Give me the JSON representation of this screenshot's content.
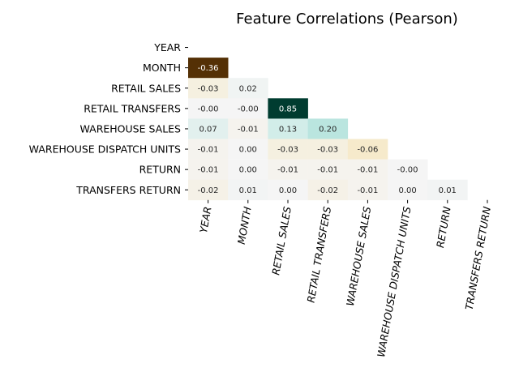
{
  "chart_data": {
    "type": "heatmap",
    "title": "Feature Correlations (Pearson)",
    "rows": [
      "YEAR",
      "MONTH",
      "RETAIL SALES",
      "RETAIL TRANSFERS",
      "WAREHOUSE SALES",
      "WAREHOUSE DISPATCH UNITS",
      "RETURN",
      "TRANSFERS RETURN"
    ],
    "columns": [
      "YEAR",
      "MONTH",
      "RETAIL SALES",
      "RETAIL TRANSFERS",
      "WAREHOUSE SALES",
      "WAREHOUSE DISPATCH UNITS",
      "RETURN",
      "TRANSFERS RETURN"
    ],
    "mask": "upper-triangle-incl-diagonal",
    "colormap": "BrBG",
    "vmin": -0.36,
    "vmax": 0.85,
    "values": [
      [
        null,
        null,
        null,
        null,
        null,
        null,
        null,
        null
      ],
      [
        -0.36,
        null,
        null,
        null,
        null,
        null,
        null,
        null
      ],
      [
        -0.03,
        0.02,
        null,
        null,
        null,
        null,
        null,
        null
      ],
      [
        -0.0,
        -0.0,
        0.85,
        null,
        null,
        null,
        null,
        null
      ],
      [
        0.07,
        -0.01,
        0.13,
        0.2,
        null,
        null,
        null,
        null
      ],
      [
        -0.01,
        0.0,
        -0.03,
        -0.03,
        -0.06,
        null,
        null,
        null
      ],
      [
        -0.01,
        0.0,
        -0.01,
        -0.01,
        -0.01,
        -0.0,
        null,
        null
      ],
      [
        -0.02,
        0.01,
        0.0,
        -0.02,
        -0.01,
        0.0,
        0.01,
        null
      ]
    ],
    "labels": [
      [
        null,
        null,
        null,
        null,
        null,
        null,
        null,
        null
      ],
      [
        "-0.36",
        null,
        null,
        null,
        null,
        null,
        null,
        null
      ],
      [
        "-0.03",
        "0.02",
        null,
        null,
        null,
        null,
        null,
        null
      ],
      [
        "-0.00",
        "-0.00",
        "0.85",
        null,
        null,
        null,
        null,
        null
      ],
      [
        "0.07",
        "-0.01",
        "0.13",
        "0.20",
        null,
        null,
        null,
        null
      ],
      [
        "-0.01",
        "0.00",
        "-0.03",
        "-0.03",
        "-0.06",
        null,
        null,
        null
      ],
      [
        "-0.01",
        "0.00",
        "-0.01",
        "-0.01",
        "-0.01",
        "-0.00",
        null,
        null
      ],
      [
        "-0.02",
        "0.01",
        "0.00",
        "-0.02",
        "-0.01",
        "0.00",
        "0.01",
        null
      ]
    ]
  }
}
